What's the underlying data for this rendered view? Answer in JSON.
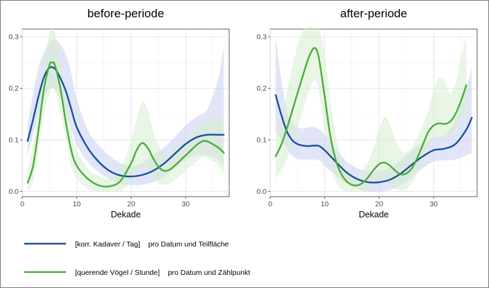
{
  "chart_data": [
    {
      "type": "line",
      "title": "before-periode",
      "xlabel": "Dekade",
      "ylabel": "",
      "xlim": [
        0,
        38
      ],
      "ylim": [
        -0.01,
        0.315
      ],
      "xticks": [
        0,
        10,
        20,
        30
      ],
      "yticks": [
        0.0,
        0.1,
        0.2,
        0.3
      ],
      "ytick_labels": [
        "0.0",
        "0.1",
        "0.2",
        "0.3"
      ],
      "grid": true,
      "series": [
        {
          "key": "kadaver",
          "color": "#1b4fa0",
          "band_color": "#c9cff0",
          "x": [
            1,
            2,
            3,
            4,
            5,
            6,
            7,
            8,
            9,
            10,
            12,
            14,
            16,
            18,
            20,
            22,
            24,
            26,
            28,
            30,
            32,
            34,
            36,
            37
          ],
          "values": [
            0.098,
            0.14,
            0.185,
            0.222,
            0.24,
            0.238,
            0.22,
            0.195,
            0.16,
            0.125,
            0.085,
            0.058,
            0.04,
            0.031,
            0.029,
            0.032,
            0.04,
            0.054,
            0.073,
            0.092,
            0.105,
            0.11,
            0.11,
            0.11
          ],
          "lower": [
            0.07,
            0.11,
            0.15,
            0.18,
            0.2,
            0.198,
            0.18,
            0.152,
            0.12,
            0.09,
            0.058,
            0.038,
            0.024,
            0.015,
            0.012,
            0.013,
            0.018,
            0.028,
            0.045,
            0.062,
            0.07,
            0.07,
            0.062,
            0.05
          ],
          "upper": [
            0.13,
            0.19,
            0.24,
            0.27,
            0.29,
            0.295,
            0.285,
            0.265,
            0.23,
            0.18,
            0.12,
            0.09,
            0.07,
            0.055,
            0.05,
            0.055,
            0.07,
            0.085,
            0.105,
            0.128,
            0.145,
            0.16,
            0.22,
            0.28
          ]
        },
        {
          "key": "voegel",
          "color": "#4aad3a",
          "band_color": "#d7efcf",
          "x": [
            1,
            2,
            3,
            4,
            5,
            5.5,
            6,
            7,
            8,
            9,
            10,
            12,
            14,
            16,
            18,
            20,
            21,
            22,
            23,
            24,
            25,
            26,
            27,
            28,
            30,
            32,
            33,
            34,
            36,
            37
          ],
          "values": [
            0.017,
            0.05,
            0.12,
            0.2,
            0.245,
            0.25,
            0.245,
            0.2,
            0.135,
            0.08,
            0.05,
            0.025,
            0.012,
            0.01,
            0.02,
            0.055,
            0.08,
            0.094,
            0.085,
            0.065,
            0.048,
            0.04,
            0.042,
            0.05,
            0.07,
            0.09,
            0.097,
            0.097,
            0.085,
            0.075
          ],
          "lower": [
            0.0,
            0.02,
            0.08,
            0.15,
            0.19,
            0.2,
            0.195,
            0.155,
            0.1,
            0.05,
            0.025,
            0.005,
            0.0,
            0.0,
            0.0,
            0.02,
            0.04,
            0.05,
            0.045,
            0.03,
            0.018,
            0.012,
            0.015,
            0.022,
            0.04,
            0.058,
            0.065,
            0.065,
            0.05,
            0.03
          ],
          "upper": [
            0.04,
            0.09,
            0.17,
            0.25,
            0.305,
            0.315,
            0.31,
            0.26,
            0.18,
            0.12,
            0.08,
            0.045,
            0.03,
            0.025,
            0.045,
            0.1,
            0.14,
            0.175,
            0.16,
            0.12,
            0.09,
            0.075,
            0.075,
            0.085,
            0.1,
            0.125,
            0.135,
            0.14,
            0.14,
            0.14
          ]
        }
      ]
    },
    {
      "type": "line",
      "title": "after-periode",
      "xlabel": "Dekade",
      "ylabel": "",
      "xlim": [
        0,
        38
      ],
      "ylim": [
        -0.01,
        0.315
      ],
      "xticks": [
        0,
        10,
        20,
        30
      ],
      "yticks": [
        0.0,
        0.1,
        0.2,
        0.3
      ],
      "ytick_labels": [
        "0.0",
        "0.1",
        "0.2",
        "0.3"
      ],
      "grid": true,
      "series": [
        {
          "key": "kadaver",
          "color": "#1b4fa0",
          "band_color": "#c9cff0",
          "x": [
            1,
            2,
            3,
            4,
            5,
            6,
            7,
            8,
            9,
            10,
            12,
            14,
            16,
            18,
            20,
            22,
            24,
            26,
            28,
            30,
            32,
            34,
            36,
            37
          ],
          "values": [
            0.187,
            0.15,
            0.118,
            0.1,
            0.092,
            0.089,
            0.088,
            0.089,
            0.088,
            0.08,
            0.058,
            0.037,
            0.024,
            0.018,
            0.018,
            0.023,
            0.035,
            0.052,
            0.068,
            0.08,
            0.083,
            0.092,
            0.12,
            0.143
          ],
          "lower": [
            0.12,
            0.1,
            0.085,
            0.07,
            0.063,
            0.062,
            0.062,
            0.062,
            0.06,
            0.05,
            0.032,
            0.015,
            0.005,
            0.0,
            0.0,
            0.003,
            0.012,
            0.028,
            0.045,
            0.058,
            0.06,
            0.062,
            0.07,
            0.075
          ],
          "upper": [
            0.3,
            0.22,
            0.16,
            0.135,
            0.125,
            0.122,
            0.125,
            0.125,
            0.12,
            0.11,
            0.085,
            0.058,
            0.045,
            0.04,
            0.04,
            0.046,
            0.06,
            0.08,
            0.095,
            0.105,
            0.11,
            0.14,
            0.2,
            0.24
          ]
        },
        {
          "key": "voegel",
          "color": "#4aad3a",
          "band_color": "#d7efcf",
          "x": [
            1,
            2,
            3,
            4,
            5,
            6,
            7,
            7.5,
            8,
            8.5,
            9,
            10,
            11,
            12,
            13,
            14,
            15,
            16,
            17,
            18,
            19,
            20,
            21,
            22,
            23,
            24,
            25,
            26,
            27,
            28,
            29,
            30,
            31,
            32,
            33,
            34,
            35,
            36
          ],
          "values": [
            0.068,
            0.09,
            0.12,
            0.155,
            0.19,
            0.225,
            0.258,
            0.27,
            0.278,
            0.275,
            0.255,
            0.185,
            0.11,
            0.062,
            0.035,
            0.02,
            0.013,
            0.012,
            0.017,
            0.028,
            0.042,
            0.053,
            0.056,
            0.05,
            0.04,
            0.033,
            0.035,
            0.045,
            0.065,
            0.09,
            0.115,
            0.128,
            0.132,
            0.131,
            0.135,
            0.15,
            0.175,
            0.206
          ],
          "lower": [
            0.025,
            0.04,
            0.06,
            0.09,
            0.12,
            0.155,
            0.19,
            0.205,
            0.215,
            0.21,
            0.19,
            0.12,
            0.055,
            0.02,
            0.005,
            0.0,
            0.0,
            0.0,
            0.0,
            0.005,
            0.015,
            0.022,
            0.02,
            0.012,
            0.005,
            0.002,
            0.005,
            0.015,
            0.035,
            0.06,
            0.085,
            0.1,
            0.105,
            0.105,
            0.108,
            0.12,
            0.14,
            0.16
          ],
          "upper": [
            0.115,
            0.145,
            0.19,
            0.24,
            0.28,
            0.315,
            0.315,
            0.315,
            0.315,
            0.315,
            0.315,
            0.27,
            0.18,
            0.11,
            0.07,
            0.045,
            0.035,
            0.03,
            0.04,
            0.06,
            0.085,
            0.12,
            0.145,
            0.13,
            0.1,
            0.08,
            0.075,
            0.085,
            0.105,
            0.13,
            0.155,
            0.2,
            0.22,
            0.215,
            0.19,
            0.21,
            0.26,
            0.3
          ]
        }
      ]
    }
  ],
  "legend": {
    "position": "bottom-left",
    "items": [
      {
        "series": "kadaver",
        "color": "#1b4fa0",
        "label": "[korr. Kadaver / Tag]    pro Datum und Teilfläche"
      },
      {
        "series": "voegel",
        "color": "#4aad3a",
        "label": "[querende Vögel / Stunde]    pro Datum und Zählpunkt"
      }
    ]
  }
}
